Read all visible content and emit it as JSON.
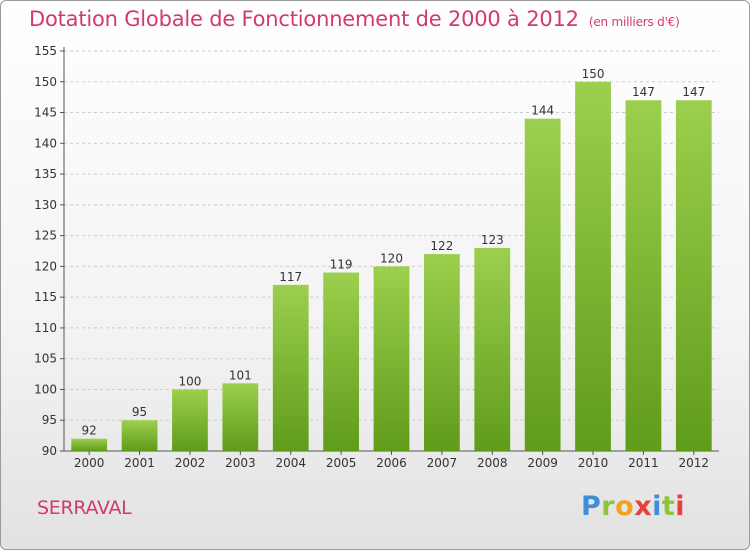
{
  "title": "Dotation Globale de Fonctionnement de 2000 à 2012",
  "subtitle": "(en milliers d'€)",
  "commune": "SERRAVAL",
  "logo": {
    "letters": [
      "P",
      "r",
      "o",
      "x",
      "i",
      "t",
      "i"
    ]
  },
  "colors": {
    "title": "#d23a6c",
    "bar_top": "#9ccf4e",
    "bar_bottom": "#5f9c1a",
    "grid": "#cccccc"
  },
  "chart_data": {
    "type": "bar",
    "categories": [
      "2000",
      "2001",
      "2002",
      "2003",
      "2004",
      "2005",
      "2006",
      "2007",
      "2008",
      "2009",
      "2010",
      "2011",
      "2012"
    ],
    "values": [
      92,
      95,
      100,
      101,
      117,
      119,
      120,
      122,
      123,
      144,
      150,
      147,
      147
    ],
    "ylim": [
      90,
      155
    ],
    "yticks": [
      90,
      95,
      100,
      105,
      110,
      115,
      120,
      125,
      130,
      135,
      140,
      145,
      150,
      155
    ],
    "grid": "horizontal dashed"
  }
}
